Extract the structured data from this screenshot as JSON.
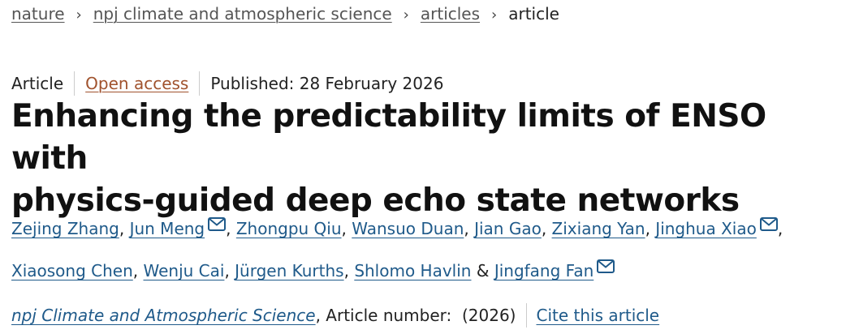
{
  "breadcrumb": {
    "items": [
      "nature",
      "npj climate and atmospheric science",
      "articles"
    ],
    "current": "article",
    "separator": "›"
  },
  "meta": {
    "type": "Article",
    "access": "Open access",
    "published": "Published: 28 February 2026"
  },
  "title": {
    "line1": "Enhancing the predictability limits of ENSO with",
    "line2": "physics-guided deep echo state networks"
  },
  "authors": [
    {
      "name": "Zejing Zhang",
      "email": false
    },
    {
      "name": "Jun Meng",
      "email": true
    },
    {
      "name": "Zhongpu Qiu",
      "email": false
    },
    {
      "name": "Wansuo Duan",
      "email": false
    },
    {
      "name": "Jian Gao",
      "email": false
    },
    {
      "name": "Zixiang Yan",
      "email": false
    },
    {
      "name": "Jinghua Xiao",
      "email": true
    },
    {
      "name": "Xiaosong Chen",
      "email": false
    },
    {
      "name": "Wenju Cai",
      "email": false
    },
    {
      "name": "Jürgen Kurths",
      "email": false
    },
    {
      "name": "Shlomo Havlin",
      "email": false
    },
    {
      "name": "Jingfang Fan",
      "email": true
    }
  ],
  "authors_join": {
    "comma": ",",
    "amp": "&"
  },
  "journal_row": {
    "journal": "npj Climate and Atmospheric Science",
    "article_number": ", Article number:  (2026)",
    "cite": "Cite this article"
  },
  "colors": {
    "link": "#1f5a8a",
    "open_access": "#a0522d",
    "breadcrumb": "#555555"
  },
  "icons": {
    "email": "envelope-icon",
    "separator": "chevron-right"
  }
}
